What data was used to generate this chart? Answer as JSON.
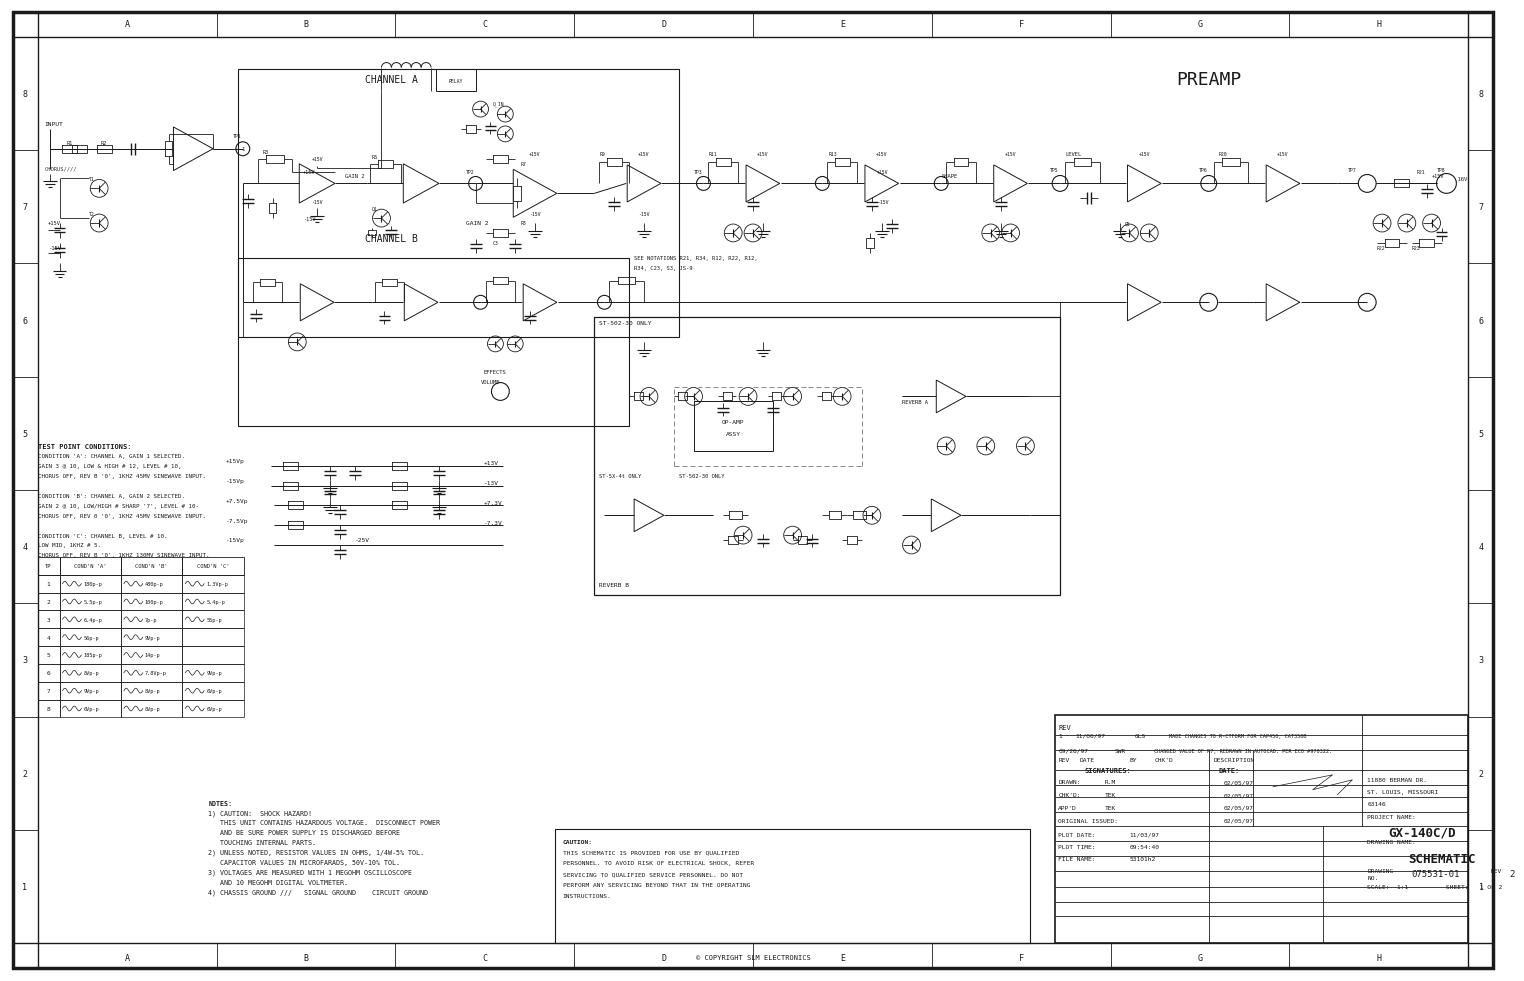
{
  "bg_color": "#ffffff",
  "line_color": "#1a1a1a",
  "text_color": "#1a1a1a",
  "figsize": [
    15.0,
    9.71
  ],
  "dpi": 100,
  "project_name": "GX-140C/D",
  "drawing_name": "SCHEMATIC",
  "drawing_no": "075531-01",
  "sheet": "1 OF 2",
  "rev": "2",
  "scale": "1:1",
  "copyright": "COPYRIGHT SLM ELECTRONICS",
  "drawn": "R.M",
  "drawn_date": "02/05/97",
  "chkd": "TEK",
  "chkd_date": "02/05/97",
  "appd": "TEK",
  "appd_date": "02/05/97",
  "original_issued": "02/05/97",
  "plot_date": "11/03/97",
  "plot_time": "09:54:40",
  "file_name": "53101h2",
  "grid_cols": [
    "A",
    "B",
    "C",
    "D",
    "E",
    "F",
    "G",
    "H"
  ],
  "grid_rows": [
    "8",
    "7",
    "6",
    "5",
    "4",
    "3",
    "2",
    "1"
  ],
  "notes": [
    "NOTES:",
    "1) CAUTION:  SHOCK HAZARD!",
    "   THIS UNIT CONTAINS HAZARDOUS VOLTAGE.  DISCONNECT POWER",
    "   AND BE SURE POWER SUPPLY IS DISCHARGED BEFORE",
    "   TOUCHING INTERNAL PARTS.",
    "2) UNLESS NOTED, RESISTOR VALUES IN OHMS, 1/4W-5% TOL.",
    "   CAPACITOR VALUES IN MICROFARADS, 50V-10% TOL.",
    "3) VOLTAGES ARE MEASURED WITH 1 MEGOHM OSCILLOSCOPE",
    "   AND 10 MEGOHM DIGITAL VOLTMETER.",
    "4) CHASSIS GROUND ///   SIGNAL GROUND    CIRCUIT GROUND"
  ],
  "test_point_header": "TEST POINT CONDITIONS:",
  "test_point_conditions": [
    "CONDITION 'A': CHANNEL A, GAIN 1 SELECTED.",
    "GAIN 3 @ 10, LOW & HIGH # 12, LEVEL # 10,",
    "CHORUS OFF, REV B '0', 1KHZ 45MV SINEWAVE INPUT.",
    " ",
    "CONDITION 'B': CHANNEL A, GAIN 2 SELECTED.",
    "GAIN 2 @ 10, LOW/HIGH # SHARP '7', LEVEL # 10-",
    "CHORUS OFF, REV 0 '0', 1KHZ 45MV SINEWAVE INPUT.",
    " ",
    "CONDITION 'C': CHANNEL B, LEVEL # 10.",
    "LOW MID, 1KHZ # 5.",
    "CHORUS OFF, REV B '0', 1KHZ 130MV SINEWAVE INPUT."
  ],
  "tp_table_rows": [
    [
      "1",
      "180p-p",
      "480p-p",
      "1.3Vp-p"
    ],
    [
      "2",
      "5.5p-p",
      "100p-p",
      "5.4p-p"
    ],
    [
      "3",
      "6.4p-p",
      "7p-p",
      "55p-p"
    ],
    [
      "4",
      "56p-p",
      "9Vp-p",
      ""
    ],
    [
      "5",
      "185p-p",
      "14p-p",
      ""
    ],
    [
      "6",
      "8Vp-p",
      "7.8Vp-p",
      "9Vp-p"
    ],
    [
      "7",
      "9Vp-p",
      "8Vp-p",
      "6Vp-p"
    ],
    [
      "8",
      "6Vp-p",
      "8Vp-p",
      "6Vp-p"
    ]
  ],
  "caution_text": [
    "CAUTION:",
    "THIS SCHEMATIC IS PROVIDED FOR USE BY QUALIFIED",
    "PERSONNEL. TO AVOID RISK OF ELECTRICAL SHOCK, REFER",
    "SERVICING TO QUALIFIED SERVICE PERSONNEL. DO NOT",
    "PERFORM ANY SERVICING BEYOND THAT IN THE OPERATING",
    "INSTRUCTIONS."
  ],
  "rev_entries": [
    {
      "num": "1",
      "date": "11/06/97",
      "by": "GLS",
      "desc": "MADE CHANGES TO R-CTFORM FOR CAP450, CAT350B"
    },
    {
      "num": "",
      "date": "09/26/97",
      "by": "SWR",
      "desc": "CHANGED VALUE OF R7, REDRAWN IN AUTOCAD. PER ECO #970322."
    }
  ]
}
